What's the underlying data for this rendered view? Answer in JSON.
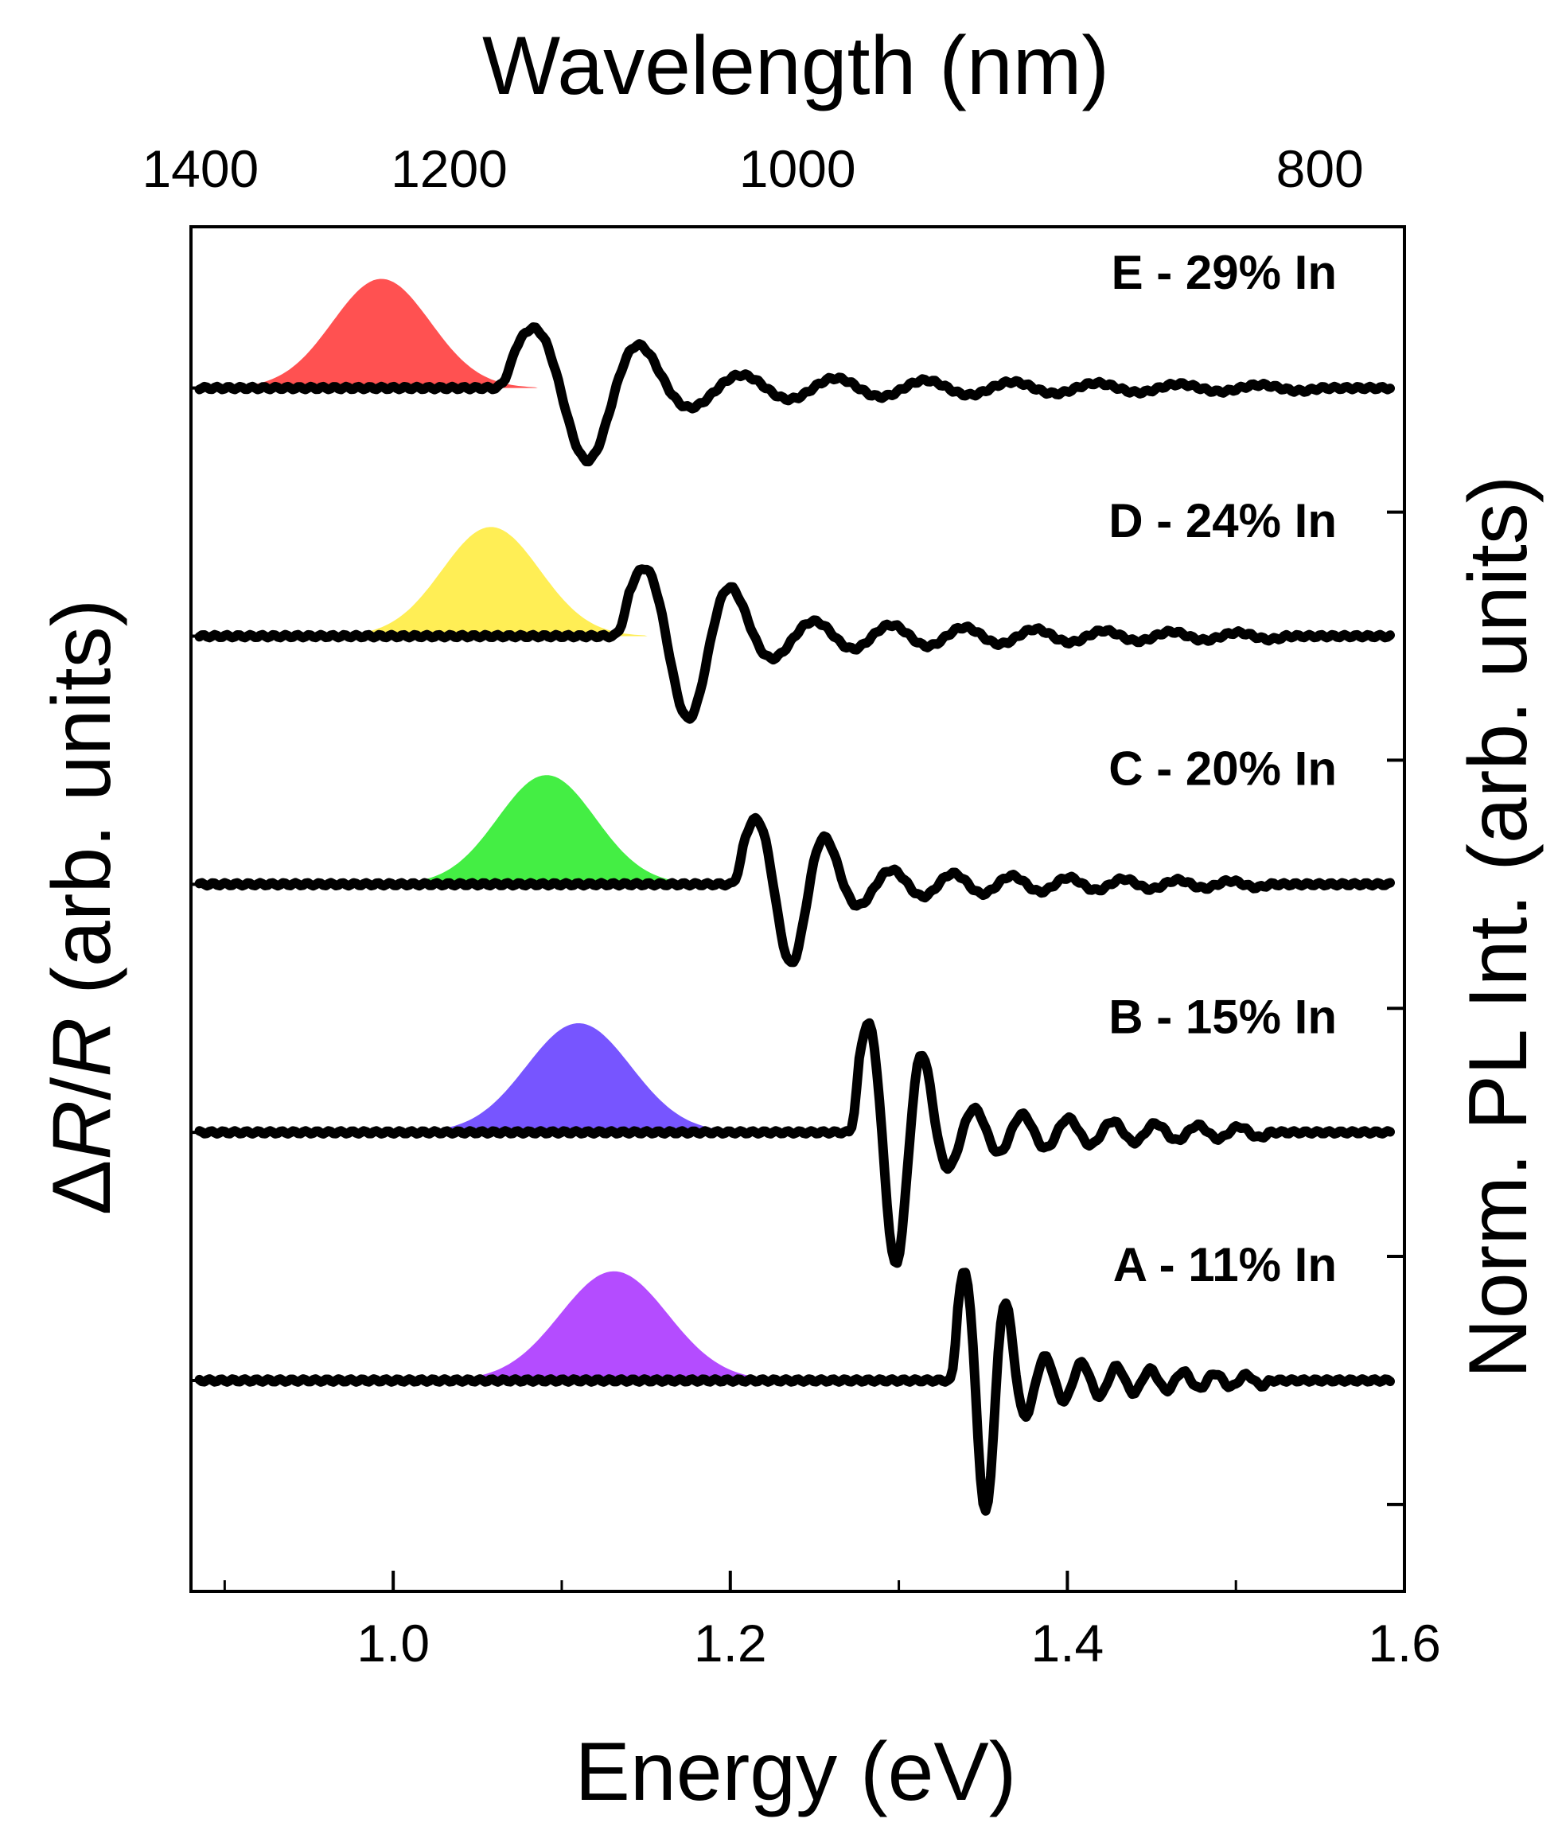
{
  "chart_data": {
    "type": "line",
    "xlabel": "Energy (eV)",
    "top_xlabel": "Wavelength (nm)",
    "ylabel_left_prefix": "Δ",
    "ylabel_left_R1": "R",
    "ylabel_left_slash": "/",
    "ylabel_left_R2": "R",
    "ylabel_left_suffix": " (arb. units)",
    "ylabel_right": "Norm. PL Int. (arb. units)",
    "xlim": [
      0.88,
      1.6
    ],
    "xticks": [
      {
        "value": 1.0,
        "label": "1.0"
      },
      {
        "value": 1.2,
        "label": "1.2"
      },
      {
        "value": 1.4,
        "label": "1.4"
      },
      {
        "value": 1.6,
        "label": "1.6"
      }
    ],
    "top_ticks": [
      {
        "value": 1400,
        "label": "1400"
      },
      {
        "value": 1200,
        "label": "1200"
      },
      {
        "value": 1000,
        "label": "1000"
      },
      {
        "value": 800,
        "label": "800"
      }
    ],
    "series": [
      {
        "name": "E - 29% In",
        "pl_color": "#ff5151",
        "pl_peak_ev": 0.993,
        "pl_width_ev": 0.029,
        "pl_amplitude": 0.44,
        "pr_start_ev": 1.06,
        "pr_end_ev": 1.55,
        "pr_amplitude": 0.22
      },
      {
        "name": "D - 24% In",
        "pl_color": "#ffee55",
        "pl_peak_ev": 1.058,
        "pl_width_ev": 0.029,
        "pl_amplitude": 0.44,
        "pr_start_ev": 1.13,
        "pr_end_ev": 1.53,
        "pr_amplitude": 0.25
      },
      {
        "name": "C - 20% In",
        "pl_color": "#44ee44",
        "pl_peak_ev": 1.091,
        "pl_width_ev": 0.029,
        "pl_amplitude": 0.44,
        "pr_start_ev": 1.2,
        "pr_end_ev": 1.52,
        "pr_amplitude": 0.24
      },
      {
        "name": "B - 15% In",
        "pl_color": "#7755ff",
        "pl_peak_ev": 1.11,
        "pl_width_ev": 0.031,
        "pl_amplitude": 0.44,
        "pr_start_ev": 1.27,
        "pr_end_ev": 1.52,
        "pr_amplitude": 0.4
      },
      {
        "name": "A - 11% In",
        "pl_color": "#b44cff",
        "pl_peak_ev": 1.131,
        "pl_width_ev": 0.032,
        "pl_amplitude": 0.44,
        "pr_start_ev": 1.33,
        "pr_end_ev": 1.52,
        "pr_amplitude": 0.4
      }
    ]
  }
}
